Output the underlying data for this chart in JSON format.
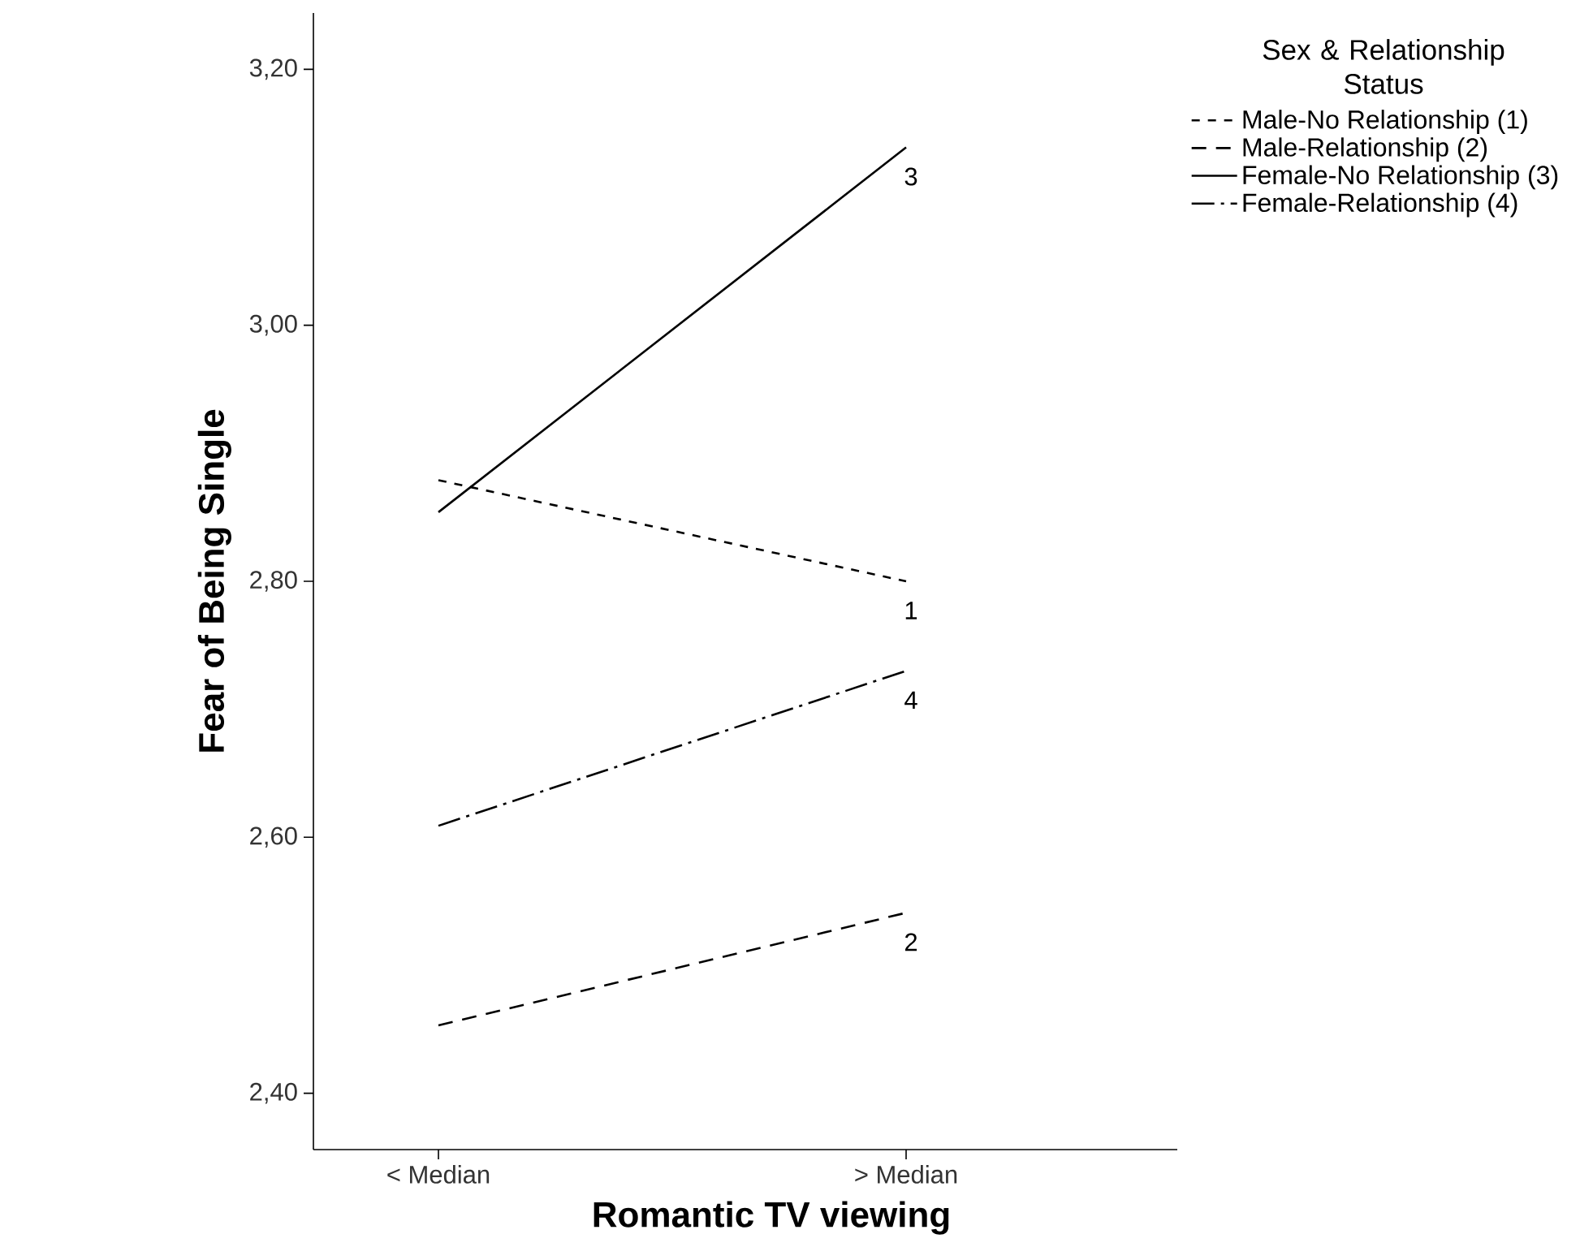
{
  "chart_data": {
    "type": "line",
    "xlabel": "Romantic TV viewing",
    "ylabel": "Fear of Being Single",
    "legend_title": "Sex & Relationship Status",
    "categories": [
      "< Median",
      "> Median"
    ],
    "series": [
      {
        "name": "Male-No Relationship (1)",
        "color": "#000000",
        "line_style": "dotted",
        "values": [
          2.879,
          2.8
        ]
      },
      {
        "name": "Male-Relationship (2)",
        "color": "#000000",
        "line_style": "dashed",
        "values": [
          2.453,
          2.541
        ]
      },
      {
        "name": "Female-No Relationship (3)",
        "color": "#000000",
        "line_style": "solid",
        "values": [
          2.854,
          3.139
        ]
      },
      {
        "name": "Female-Relationship (4)",
        "color": "#000000",
        "line_style": "dashdot",
        "values": [
          2.609,
          2.73
        ]
      }
    ],
    "ylim": [
      2.356,
      3.244
    ],
    "yticks": [
      {
        "value": 2.4,
        "label": "2,40"
      },
      {
        "value": 2.6,
        "label": "2,60"
      },
      {
        "value": 2.8,
        "label": "2,80"
      },
      {
        "value": 3.0,
        "label": "3,00"
      },
      {
        "value": 3.2,
        "label": "3,20"
      }
    ],
    "annotations": [
      {
        "text": "3",
        "x": "> Median",
        "y": 3.139
      },
      {
        "text": "1",
        "x": "> Median",
        "y": 2.8
      },
      {
        "text": "4",
        "x": "> Median",
        "y": 2.73
      },
      {
        "text": "2",
        "x": "> Median",
        "y": 2.541
      }
    ],
    "legend": "top right",
    "grid": false,
    "marker": "none"
  }
}
